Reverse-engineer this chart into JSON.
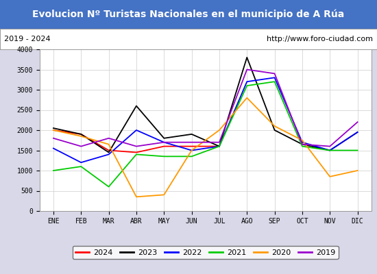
{
  "title": "Evolucion Nº Turistas Nacionales en el municipio de A Rúa",
  "subtitle_left": "2019 - 2024",
  "subtitle_right": "http://www.foro-ciudad.com",
  "title_bg_color": "#4472c4",
  "title_text_color": "#ffffff",
  "months": [
    "ENE",
    "FEB",
    "MAR",
    "ABR",
    "MAY",
    "JUN",
    "JUL",
    "AGO",
    "SEP",
    "OCT",
    "NOV",
    "DIC"
  ],
  "ylim": [
    0,
    4000
  ],
  "yticks": [
    0,
    500,
    1000,
    1500,
    2000,
    2500,
    3000,
    3500,
    4000
  ],
  "series": {
    "2024": {
      "color": "#ff0000",
      "data": [
        2000,
        1900,
        1500,
        1450,
        1600,
        1600,
        1600,
        null,
        null,
        null,
        null,
        null
      ]
    },
    "2023": {
      "color": "#000000",
      "data": [
        2050,
        1900,
        1450,
        2600,
        1800,
        1900,
        1600,
        3800,
        2000,
        1650,
        1500,
        1950
      ]
    },
    "2022": {
      "color": "#0000ff",
      "data": [
        1550,
        1200,
        1400,
        2000,
        1700,
        1500,
        1600,
        3200,
        3300,
        1700,
        1500,
        1950
      ]
    },
    "2021": {
      "color": "#00cc00",
      "data": [
        1000,
        1100,
        600,
        1400,
        1350,
        1350,
        1600,
        3100,
        3200,
        1600,
        1500,
        1500
      ]
    },
    "2020": {
      "color": "#ff9900",
      "data": [
        2000,
        1850,
        1650,
        350,
        400,
        1500,
        2000,
        2800,
        2100,
        1750,
        850,
        1000
      ]
    },
    "2019": {
      "color": "#9900cc",
      "data": [
        1800,
        1600,
        1800,
        1600,
        1700,
        1700,
        1700,
        3500,
        3400,
        1650,
        1600,
        2200
      ]
    }
  },
  "legend_order": [
    "2024",
    "2023",
    "2022",
    "2021",
    "2020",
    "2019"
  ],
  "background_color": "#d8d8e8",
  "plot_bg_color": "#ffffff",
  "grid_color": "#cccccc",
  "title_fontsize": 10,
  "subtitle_fontsize": 8,
  "tick_fontsize": 7,
  "legend_fontsize": 8
}
